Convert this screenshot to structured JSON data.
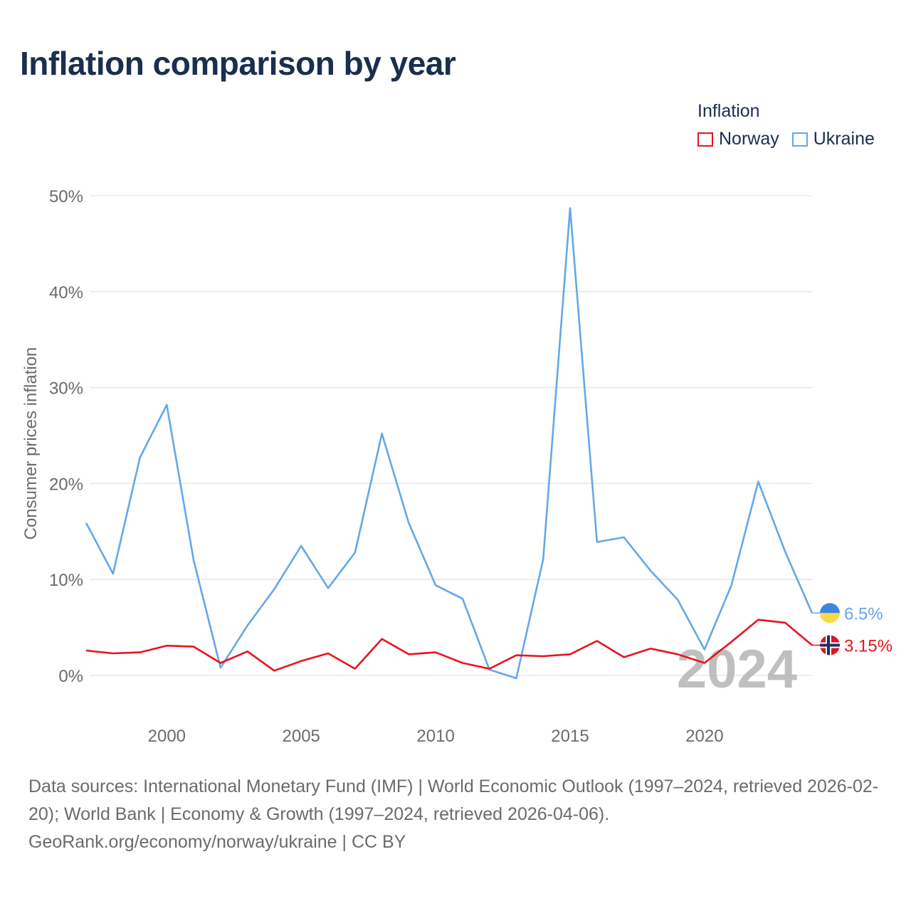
{
  "title": "Inflation comparison by year",
  "legend": {
    "title": "Inflation",
    "items": [
      {
        "label": "Norway",
        "color": "#e8141e"
      },
      {
        "label": "Ukraine",
        "color": "#64a8e6"
      }
    ]
  },
  "chart_data": {
    "type": "line",
    "title": "Inflation comparison by year",
    "ylabel": "Consumer prices inflation",
    "xlabel": "",
    "x": [
      1997,
      1998,
      1999,
      2000,
      2001,
      2002,
      2003,
      2004,
      2005,
      2006,
      2007,
      2008,
      2009,
      2010,
      2011,
      2012,
      2013,
      2014,
      2015,
      2016,
      2017,
      2018,
      2019,
      2020,
      2021,
      2022,
      2023,
      2024
    ],
    "xlim": [
      1997,
      2024
    ],
    "ylim": [
      -5,
      50
    ],
    "yticks": [
      0,
      10,
      20,
      30,
      40,
      50
    ],
    "ytick_labels": [
      "0%",
      "10%",
      "20%",
      "30%",
      "40%",
      "50%"
    ],
    "xticks": [
      2000,
      2005,
      2010,
      2015,
      2020
    ],
    "xtick_labels": [
      "2000",
      "2005",
      "2010",
      "2015",
      "2020"
    ],
    "grid": true,
    "legend_position": "top-right",
    "year_watermark": "2024",
    "series": [
      {
        "name": "Ukraine",
        "color": "#64a8e6",
        "end_label": "6.5%",
        "values": [
          15.9,
          10.6,
          22.7,
          28.2,
          12.0,
          0.8,
          5.2,
          9.0,
          13.5,
          9.1,
          12.8,
          25.2,
          15.9,
          9.4,
          8.0,
          0.6,
          -0.3,
          12.1,
          48.7,
          13.9,
          14.4,
          10.9,
          7.9,
          2.7,
          9.4,
          20.2,
          12.9,
          6.5
        ]
      },
      {
        "name": "Norway",
        "color": "#e8141e",
        "end_label": "3.15%",
        "values": [
          2.6,
          2.3,
          2.4,
          3.1,
          3.0,
          1.3,
          2.5,
          0.5,
          1.5,
          2.3,
          0.7,
          3.8,
          2.2,
          2.4,
          1.3,
          0.7,
          2.1,
          2.0,
          2.2,
          3.6,
          1.9,
          2.8,
          2.2,
          1.3,
          3.5,
          5.8,
          5.5,
          3.15
        ]
      }
    ]
  },
  "source": {
    "line1": "Data sources: International Monetary Fund (IMF) | World Economic Outlook (1997–2024, retrieved 2026-02-20); World Bank | Economy & Growth (1997–2024, retrieved 2026-04-06).",
    "line2": "GeoRank.org/economy/norway/ukraine | CC BY"
  }
}
